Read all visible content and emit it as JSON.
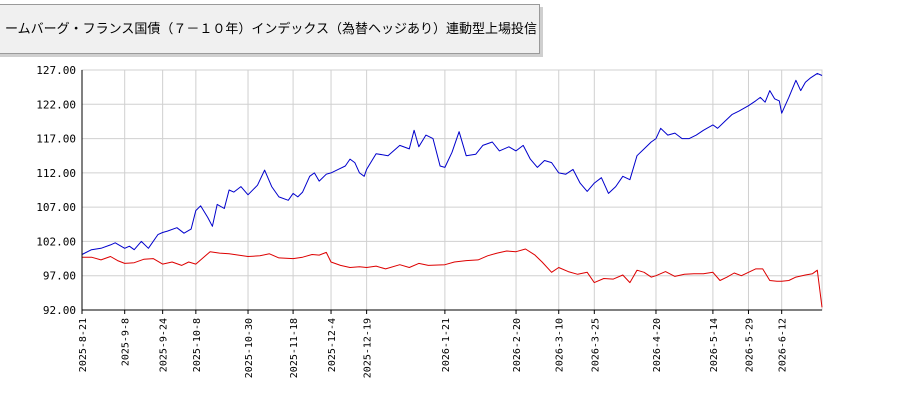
{
  "title": "ームバーグ・フランス国債（７－１０年）インデックス（為替ヘッジあり）連動型上場投信",
  "colors": {
    "series_1": "#0000cc",
    "series_2": "#dd0000",
    "grid": "#d0d0d0",
    "axis": "#000000"
  },
  "chart_data": {
    "type": "line",
    "title": "ームバーグ・フランス国債（７－１０年）インデックス（為替ヘッジあり）連動型上場投信",
    "xlabel": "",
    "ylabel": "",
    "ylim": [
      92.0,
      127.0
    ],
    "yticks": [
      "127.00",
      "122.00",
      "117.00",
      "112.00",
      "107.00",
      "102.00",
      "97.00",
      "92.00"
    ],
    "xticks": [
      "2025-8-21",
      "2025-9-8",
      "2025-9-24",
      "2025-10-8",
      "2025-10-30",
      "2025-11-18",
      "2025-12-4",
      "2025-12-19",
      "2026-1-21",
      "2026-2-20",
      "2026-3-10",
      "2026-3-25",
      "2026-4-20",
      "2026-5-14",
      "2026-5-29",
      "2026-6-12"
    ],
    "grid": true,
    "legend": "none",
    "series": [
      {
        "color": "#0000cc",
        "points": [
          [
            "2025-8-21",
            100.1
          ],
          [
            "2025-8-25",
            100.8
          ],
          [
            "2025-8-29",
            101.0
          ],
          [
            "2025-9-2",
            101.5
          ],
          [
            "2025-9-4",
            101.8
          ],
          [
            "2025-9-8",
            101.0
          ],
          [
            "2025-9-10",
            101.3
          ],
          [
            "2025-9-12",
            100.8
          ],
          [
            "2025-9-15",
            102.0
          ],
          [
            "2025-9-18",
            101.0
          ],
          [
            "2025-9-22",
            103.0
          ],
          [
            "2025-9-24",
            103.3
          ],
          [
            "2025-9-26",
            103.5
          ],
          [
            "2025-9-30",
            104.0
          ],
          [
            "2025-10-3",
            103.2
          ],
          [
            "2025-10-6",
            103.8
          ],
          [
            "2025-10-8",
            106.5
          ],
          [
            "2025-10-10",
            107.2
          ],
          [
            "2025-10-13",
            105.5
          ],
          [
            "2025-10-15",
            104.2
          ],
          [
            "2025-10-17",
            107.4
          ],
          [
            "2025-10-20",
            106.8
          ],
          [
            "2025-10-22",
            109.5
          ],
          [
            "2025-10-24",
            109.2
          ],
          [
            "2025-10-27",
            110.0
          ],
          [
            "2025-10-30",
            108.8
          ],
          [
            "2025-11-3",
            110.2
          ],
          [
            "2025-11-6",
            112.4
          ],
          [
            "2025-11-9",
            110.0
          ],
          [
            "2025-11-12",
            108.5
          ],
          [
            "2025-11-16",
            108.0
          ],
          [
            "2025-11-18",
            109.0
          ],
          [
            "2025-11-20",
            108.5
          ],
          [
            "2025-11-22",
            109.2
          ],
          [
            "2025-11-25",
            111.5
          ],
          [
            "2025-11-27",
            112.0
          ],
          [
            "2025-11-29",
            110.8
          ],
          [
            "2025-12-2",
            111.8
          ],
          [
            "2025-12-4",
            112.0
          ],
          [
            "2025-12-7",
            112.5
          ],
          [
            "2025-12-10",
            113.0
          ],
          [
            "2025-12-12",
            114.0
          ],
          [
            "2025-12-14",
            113.5
          ],
          [
            "2025-12-16",
            112.0
          ],
          [
            "2025-12-18",
            111.5
          ],
          [
            "2025-12-19",
            112.5
          ],
          [
            "2025-12-23",
            114.8
          ],
          [
            "2025-12-28",
            114.5
          ],
          [
            "2026-1-2",
            116.0
          ],
          [
            "2026-1-6",
            115.5
          ],
          [
            "2026-1-8",
            118.2
          ],
          [
            "2026-1-10",
            115.8
          ],
          [
            "2026-1-13",
            117.5
          ],
          [
            "2026-1-16",
            117.0
          ],
          [
            "2026-1-19",
            113.0
          ],
          [
            "2026-1-21",
            112.8
          ],
          [
            "2026-1-24",
            115.0
          ],
          [
            "2026-1-27",
            118.0
          ],
          [
            "2026-1-30",
            114.5
          ],
          [
            "2026-2-3",
            114.7
          ],
          [
            "2026-2-6",
            116.0
          ],
          [
            "2026-2-10",
            116.5
          ],
          [
            "2026-2-13",
            115.2
          ],
          [
            "2026-2-17",
            115.8
          ],
          [
            "2026-2-20",
            115.2
          ],
          [
            "2026-2-23",
            116.0
          ],
          [
            "2026-2-26",
            114.0
          ],
          [
            "2026-3-1",
            112.8
          ],
          [
            "2026-3-4",
            113.8
          ],
          [
            "2026-3-7",
            113.5
          ],
          [
            "2026-3-10",
            112.0
          ],
          [
            "2026-3-13",
            111.8
          ],
          [
            "2026-3-16",
            112.5
          ],
          [
            "2026-3-19",
            110.5
          ],
          [
            "2026-3-22",
            109.3
          ],
          [
            "2026-3-25",
            110.5
          ],
          [
            "2026-3-28",
            111.3
          ],
          [
            "2026-3-31",
            109.0
          ],
          [
            "2026-4-3",
            110.0
          ],
          [
            "2026-4-6",
            111.5
          ],
          [
            "2026-4-9",
            111.0
          ],
          [
            "2026-4-12",
            114.5
          ],
          [
            "2026-4-15",
            115.5
          ],
          [
            "2026-4-18",
            116.5
          ],
          [
            "2026-4-20",
            117.0
          ],
          [
            "2026-4-22",
            118.5
          ],
          [
            "2026-4-25",
            117.5
          ],
          [
            "2026-4-28",
            117.8
          ],
          [
            "2026-5-1",
            117.0
          ],
          [
            "2026-5-4",
            117.0
          ],
          [
            "2026-5-7",
            117.5
          ],
          [
            "2026-5-10",
            118.2
          ],
          [
            "2026-5-14",
            119.0
          ],
          [
            "2026-5-16",
            118.5
          ],
          [
            "2026-5-19",
            119.5
          ],
          [
            "2026-5-22",
            120.5
          ],
          [
            "2026-5-25",
            121.0
          ],
          [
            "2026-5-29",
            121.8
          ],
          [
            "2026-6-1",
            122.5
          ],
          [
            "2026-6-3",
            123.0
          ],
          [
            "2026-6-5",
            122.3
          ],
          [
            "2026-6-7",
            124.0
          ],
          [
            "2026-6-9",
            122.8
          ],
          [
            "2026-6-11",
            122.5
          ],
          [
            "2026-6-12",
            120.7
          ],
          [
            "2026-6-15",
            123.0
          ],
          [
            "2026-6-18",
            125.5
          ],
          [
            "2026-6-20",
            124.0
          ],
          [
            "2026-6-22",
            125.2
          ],
          [
            "2026-6-24",
            125.8
          ],
          [
            "2026-6-27",
            126.5
          ],
          [
            "2026-6-29",
            126.2
          ]
        ]
      },
      {
        "color": "#dd0000",
        "points": [
          [
            "2025-8-21",
            99.7
          ],
          [
            "2025-8-25",
            99.7
          ],
          [
            "2025-8-29",
            99.3
          ],
          [
            "2025-9-2",
            99.8
          ],
          [
            "2025-9-5",
            99.2
          ],
          [
            "2025-9-8",
            98.8
          ],
          [
            "2025-9-12",
            98.9
          ],
          [
            "2025-9-16",
            99.4
          ],
          [
            "2025-9-20",
            99.5
          ],
          [
            "2025-9-24",
            98.7
          ],
          [
            "2025-9-28",
            99.0
          ],
          [
            "2025-10-2",
            98.5
          ],
          [
            "2025-10-5",
            99.0
          ],
          [
            "2025-10-8",
            98.7
          ],
          [
            "2025-10-11",
            99.6
          ],
          [
            "2025-10-14",
            100.5
          ],
          [
            "2025-10-18",
            100.3
          ],
          [
            "2025-10-22",
            100.2
          ],
          [
            "2025-10-26",
            100.0
          ],
          [
            "2025-10-30",
            99.8
          ],
          [
            "2025-11-4",
            99.9
          ],
          [
            "2025-11-8",
            100.2
          ],
          [
            "2025-11-12",
            99.6
          ],
          [
            "2025-11-18",
            99.5
          ],
          [
            "2025-11-22",
            99.7
          ],
          [
            "2025-11-26",
            100.1
          ],
          [
            "2025-11-29",
            100.0
          ],
          [
            "2025-12-2",
            100.4
          ],
          [
            "2025-12-4",
            99.0
          ],
          [
            "2025-12-8",
            98.5
          ],
          [
            "2025-12-12",
            98.2
          ],
          [
            "2025-12-16",
            98.3
          ],
          [
            "2025-12-19",
            98.2
          ],
          [
            "2025-12-23",
            98.4
          ],
          [
            "2025-12-27",
            98.0
          ],
          [
            "2026-1-2",
            98.6
          ],
          [
            "2026-1-6",
            98.2
          ],
          [
            "2026-1-10",
            98.8
          ],
          [
            "2026-1-14",
            98.5
          ],
          [
            "2026-1-21",
            98.6
          ],
          [
            "2026-1-25",
            99.0
          ],
          [
            "2026-1-30",
            99.2
          ],
          [
            "2026-2-4",
            99.3
          ],
          [
            "2026-2-8",
            99.9
          ],
          [
            "2026-2-12",
            100.3
          ],
          [
            "2026-2-16",
            100.6
          ],
          [
            "2026-2-20",
            100.5
          ],
          [
            "2026-2-24",
            100.9
          ],
          [
            "2026-2-28",
            100.0
          ],
          [
            "2026-3-3",
            99.0
          ],
          [
            "2026-3-7",
            97.5
          ],
          [
            "2026-3-10",
            98.2
          ],
          [
            "2026-3-14",
            97.6
          ],
          [
            "2026-3-18",
            97.2
          ],
          [
            "2026-3-22",
            97.5
          ],
          [
            "2026-3-25",
            96.0
          ],
          [
            "2026-3-29",
            96.6
          ],
          [
            "2026-4-2",
            96.5
          ],
          [
            "2026-4-6",
            97.1
          ],
          [
            "2026-4-9",
            96.0
          ],
          [
            "2026-4-12",
            97.8
          ],
          [
            "2026-4-15",
            97.5
          ],
          [
            "2026-4-18",
            96.8
          ],
          [
            "2026-4-20",
            97.0
          ],
          [
            "2026-4-24",
            97.6
          ],
          [
            "2026-4-28",
            96.9
          ],
          [
            "2026-5-2",
            97.2
          ],
          [
            "2026-5-6",
            97.3
          ],
          [
            "2026-5-10",
            97.3
          ],
          [
            "2026-5-14",
            97.5
          ],
          [
            "2026-5-17",
            96.3
          ],
          [
            "2026-5-20",
            96.8
          ],
          [
            "2026-5-23",
            97.4
          ],
          [
            "2026-5-26",
            97.0
          ],
          [
            "2026-5-29",
            97.5
          ],
          [
            "2026-6-1",
            98.0
          ],
          [
            "2026-6-4",
            98.0
          ],
          [
            "2026-6-7",
            96.3
          ],
          [
            "2026-6-10",
            96.2
          ],
          [
            "2026-6-12",
            96.2
          ],
          [
            "2026-6-15",
            96.3
          ],
          [
            "2026-6-18",
            96.8
          ],
          [
            "2026-6-22",
            97.1
          ],
          [
            "2026-6-25",
            97.3
          ],
          [
            "2026-6-27",
            97.8
          ],
          [
            "2026-6-29",
            92.4
          ]
        ]
      }
    ]
  }
}
